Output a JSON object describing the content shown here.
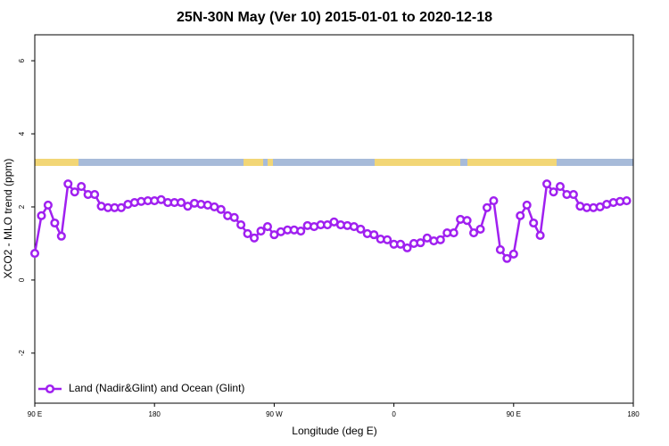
{
  "chart_data": {
    "type": "line",
    "title": "25N-30N May (Ver 10)   2015-01-01 to 2020-12-18",
    "x_label": "Longitude (deg E)",
    "y_label": "XCO2 - MLO trend (ppm)",
    "x": [
      90,
      95,
      100,
      105,
      110,
      115,
      120,
      125,
      130,
      135,
      140,
      145,
      150,
      155,
      160,
      165,
      170,
      175,
      180,
      185,
      190,
      195,
      200,
      205,
      210,
      215,
      220,
      225,
      230,
      235,
      240,
      245,
      250,
      255,
      260,
      265,
      270,
      275,
      280,
      285,
      290,
      295,
      300,
      305,
      310,
      315,
      320,
      325,
      330,
      335,
      340,
      345,
      350,
      355,
      360,
      365,
      370,
      375,
      380,
      385,
      390,
      395,
      400,
      405,
      410,
      415,
      420,
      425,
      430,
      435,
      440,
      445,
      450,
      455,
      460,
      465,
      470,
      475,
      480,
      485,
      490,
      495,
      500,
      505,
      510,
      515,
      520,
      525,
      530,
      535
    ],
    "series": [
      {
        "name": "Land (Nadir&Glint) and Ocean (Glint)",
        "color": "#a020f0",
        "values": [
          0.73,
          1.76,
          2.05,
          1.56,
          1.2,
          2.63,
          2.41,
          2.56,
          2.34,
          2.34,
          2.02,
          1.98,
          1.98,
          1.98,
          2.07,
          2.12,
          2.15,
          2.17,
          2.17,
          2.2,
          2.12,
          2.12,
          2.12,
          2.02,
          2.1,
          2.07,
          2.05,
          2.0,
          1.93,
          1.76,
          1.71,
          1.51,
          1.27,
          1.15,
          1.34,
          1.46,
          1.24,
          1.32,
          1.37,
          1.37,
          1.34,
          1.49,
          1.46,
          1.51,
          1.51,
          1.59,
          1.51,
          1.49,
          1.46,
          1.39,
          1.27,
          1.24,
          1.12,
          1.1,
          0.98,
          0.98,
          0.88,
          1.0,
          1.02,
          1.15,
          1.07,
          1.1,
          1.29,
          1.29,
          1.66,
          1.63,
          1.29,
          1.39,
          1.98,
          2.17,
          0.83,
          0.59,
          0.71,
          1.76,
          2.05,
          1.56,
          1.22,
          2.63,
          2.41,
          2.56,
          2.34,
          2.34,
          2.02,
          1.98,
          1.98,
          2.0,
          2.07,
          2.12,
          2.15,
          2.17
        ]
      }
    ],
    "xlim": [
      90,
      540
    ],
    "xticks": [
      {
        "value": 90,
        "label": "90 E"
      },
      180,
      {
        "value": 270,
        "label": "90 W"
      },
      {
        "value": 360,
        "label": "0"
      },
      {
        "value": 450,
        "label": "90 E"
      },
      {
        "value": 540,
        "label": "180"
      }
    ],
    "ylim": [
      -3.37,
      6.71
    ],
    "yticks": [
      -2,
      0,
      2,
      4,
      6
    ],
    "legend": "bottom-left"
  }
}
